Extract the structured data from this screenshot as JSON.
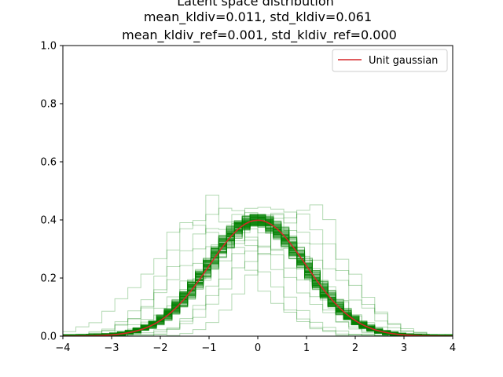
{
  "chart_data": {
    "type": "line",
    "title": [
      "Latent space distribution",
      "mean_kldiv=0.011, std_kldiv=0.061",
      "mean_kldiv_ref=0.001, std_kldiv_ref=0.000"
    ],
    "xlabel": "",
    "ylabel": "",
    "xlim": [
      -4,
      4
    ],
    "ylim": [
      0,
      1.0
    ],
    "xticks": [
      "−4",
      "−3",
      "−2",
      "−1",
      "0",
      "1",
      "2",
      "3",
      "4"
    ],
    "xtick_values": [
      -4,
      -3,
      -2,
      -1,
      0,
      1,
      2,
      3,
      4
    ],
    "yticks": [
      "0.0",
      "0.2",
      "0.4",
      "0.6",
      "0.8",
      "1.0"
    ],
    "ytick_values": [
      0,
      0.2,
      0.4,
      0.6,
      0.8,
      1.0
    ],
    "grid": false,
    "legend": {
      "placement": "upper-right",
      "entries": [
        "Unit gaussian"
      ]
    },
    "series": [
      {
        "name": "Unit gaussian",
        "kind": "line",
        "color": "#d62728",
        "function": "standard-normal-pdf"
      },
      {
        "kind": "step-histograms",
        "color": "#008000",
        "opacity": 0.3,
        "count": 120,
        "outlier_shifts_x": [
          -1.2,
          -0.9,
          -0.7,
          -0.5,
          0.5,
          0.7,
          0.9,
          -0.3,
          0.3,
          0.0
        ]
      }
    ]
  }
}
